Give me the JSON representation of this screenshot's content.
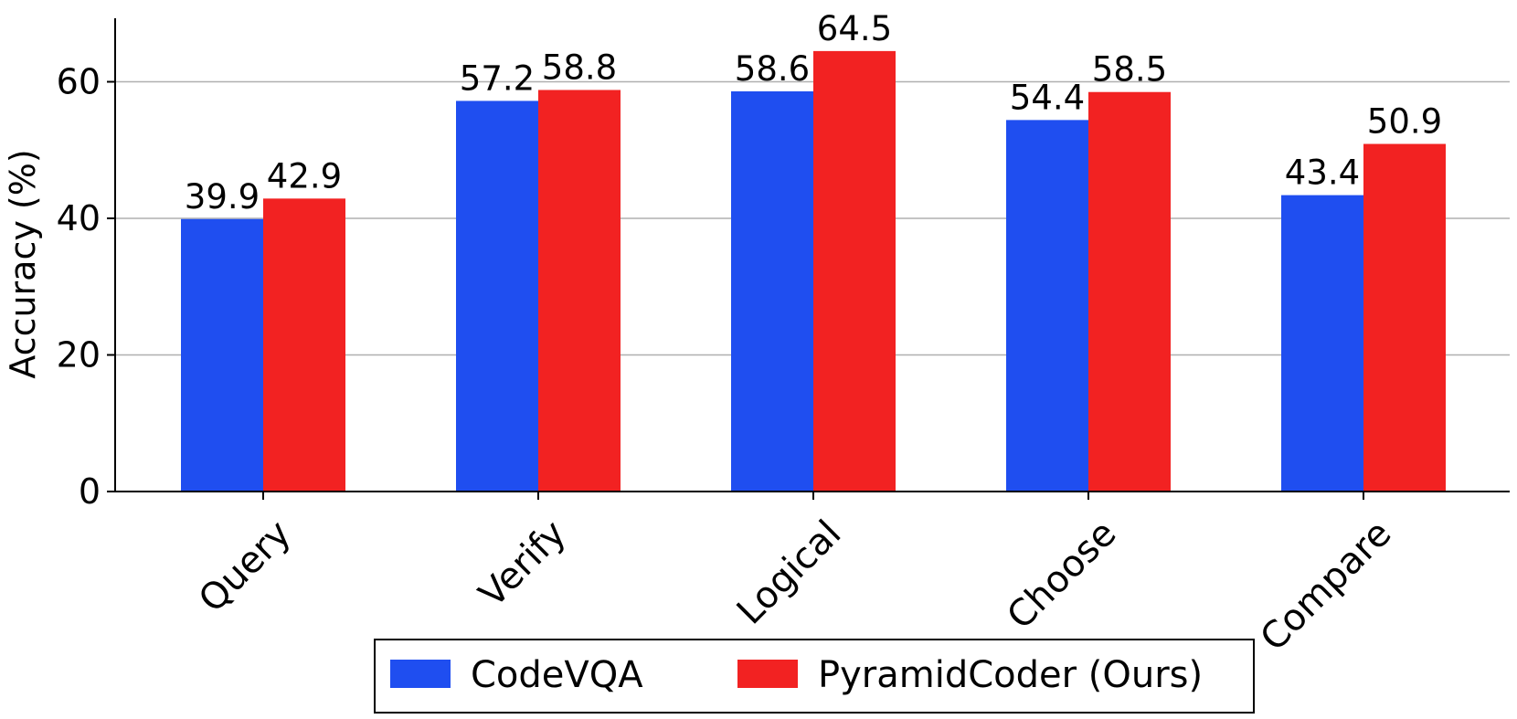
{
  "chart_data": {
    "type": "bar",
    "title": "",
    "xlabel": "",
    "ylabel": "Accuracy (%)",
    "categories": [
      "Query",
      "Verify",
      "Logical",
      "Choose",
      "Compare"
    ],
    "series": [
      {
        "name": "CodeVQA",
        "color": "#1f4ef0",
        "values": [
          39.9,
          57.2,
          58.6,
          54.4,
          43.4
        ],
        "value_labels": [
          "39.9",
          "57.2",
          "58.6",
          "54.4",
          "43.4"
        ]
      },
      {
        "name": "PyramidCoder (Ours)",
        "color": "#f22222",
        "values": [
          42.9,
          58.8,
          64.5,
          58.5,
          50.9
        ],
        "value_labels": [
          "42.9",
          "58.8",
          "64.5",
          "58.5",
          "50.9"
        ]
      }
    ],
    "yticks": [
      0,
      20,
      40,
      60
    ],
    "ytick_labels": [
      "0",
      "20",
      "40",
      "60"
    ],
    "ylim": [
      0,
      69.3
    ],
    "grid": "y-major",
    "legend_position": "bottom-center"
  }
}
